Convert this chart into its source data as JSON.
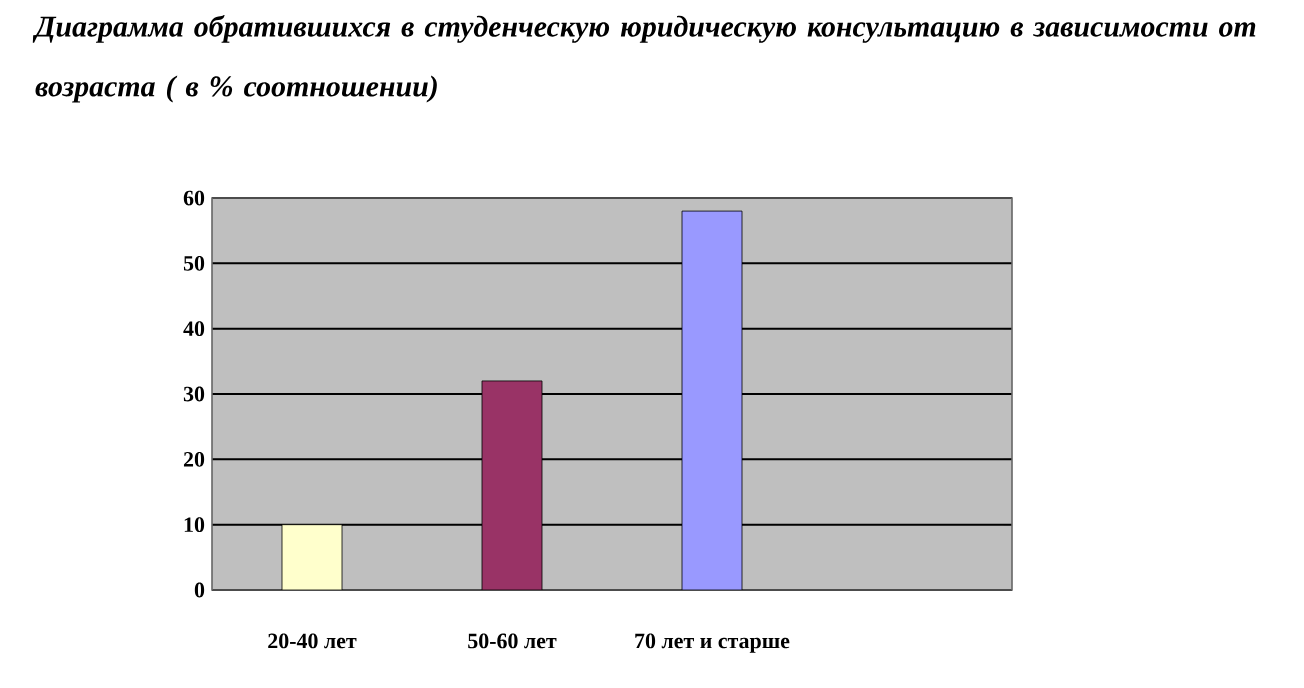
{
  "chart_data": {
    "type": "bar",
    "title": "Диаграмма обратившихся в студенческую юридическую консультацию в зависимости от возраста ( в % соотношении)",
    "categories": [
      "20-40 лет",
      "50-60 лет",
      "70 лет и старше",
      null
    ],
    "values": [
      10,
      32,
      58,
      null
    ],
    "colors": [
      "#ffffcc",
      "#993366",
      "#9999ff",
      "#ffffff"
    ],
    "ylim": [
      0,
      60
    ],
    "yticks": [
      0,
      10,
      20,
      30,
      40,
      50,
      60
    ],
    "grid": "y"
  }
}
